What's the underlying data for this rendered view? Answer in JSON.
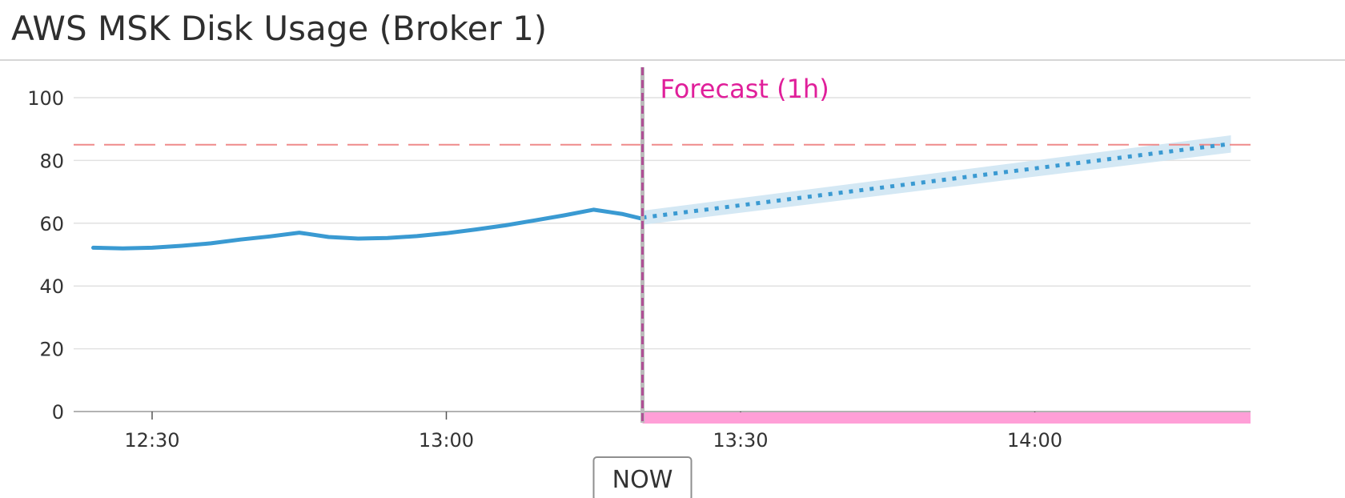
{
  "widget": {
    "title": "AWS MSK Disk Usage (Broker 1)"
  },
  "colors": {
    "series": "#3a9ad2",
    "forecast_band": "#cfe5f3",
    "threshold": "#ef8a8a",
    "forecast_accent": "#e01f9a",
    "forecast_bar": "#ff9fd7",
    "grid": "#e1e1e1",
    "now_line": "#b04f96"
  },
  "chart_data": {
    "type": "line",
    "title": "AWS MSK Disk Usage (Broker 1)",
    "xlabel": "",
    "ylabel": "",
    "ylim": [
      0,
      110
    ],
    "y_ticks": [
      0,
      20,
      40,
      60,
      80,
      100
    ],
    "x_range": [
      "12:22",
      "14:22"
    ],
    "x_ticks": [
      "12:30",
      "13:00",
      "13:30",
      "14:00"
    ],
    "now_time": "13:20",
    "now_label": "NOW",
    "forecast_label": "Forecast (1h)",
    "threshold": 85,
    "series": [
      {
        "x": [
          "12:24",
          "12:27",
          "12:30",
          "12:33",
          "12:36",
          "12:39",
          "12:42",
          "12:45",
          "12:48",
          "12:51",
          "12:54",
          "12:57",
          "13:00",
          "13:03",
          "13:06",
          "13:09",
          "13:12",
          "13:15",
          "13:18",
          "13:20"
        ],
        "values": [
          52.2,
          52.0,
          52.2,
          52.8,
          53.6,
          54.8,
          55.8,
          57.0,
          55.6,
          55.1,
          55.3,
          55.9,
          56.8,
          58.0,
          59.3,
          60.9,
          62.5,
          64.3,
          62.9,
          61.4
        ]
      }
    ],
    "forecast": {
      "x": [
        "13:20",
        "14:20"
      ],
      "values": [
        61.8,
        85.3
      ],
      "lower": [
        59.5,
        82.5
      ],
      "upper": [
        64.0,
        88.0
      ]
    }
  }
}
